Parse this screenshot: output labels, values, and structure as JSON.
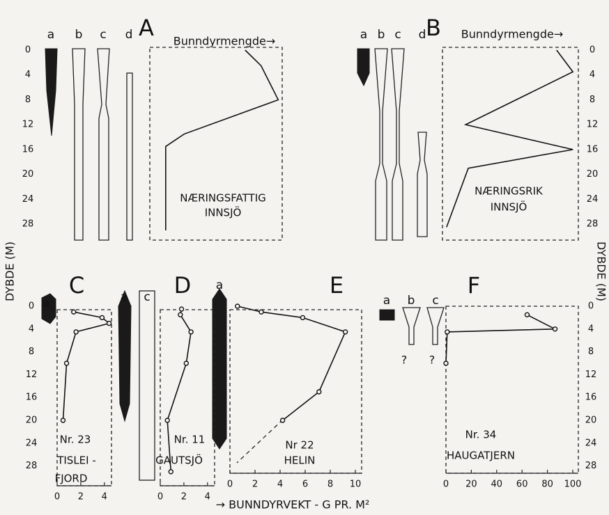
{
  "y_label": "DYBDE (M)",
  "x_label": "→ BUNNDYRVEKT - G PR. M²",
  "chart_data": [
    {
      "type": "line",
      "label": "A",
      "header": "Bunndyrmengde→",
      "columns": [
        "a",
        "b",
        "c",
        "d"
      ],
      "notes": [
        "NÆRINGSFATTIG",
        "INNSJÖ"
      ],
      "x": [
        72,
        84,
        97,
        26,
        12,
        12
      ],
      "values": [
        0,
        2.5,
        8,
        13.5,
        15.5,
        29
      ],
      "xlim": [
        0,
        100
      ],
      "ylim": [
        0,
        28
      ],
      "yticks": [
        0,
        4,
        8,
        12,
        16,
        20,
        24,
        28
      ],
      "markers": false
    },
    {
      "type": "line",
      "label": "B",
      "header": "Bunndyrmengde→",
      "columns": [
        "a",
        "b",
        "c",
        "d"
      ],
      "notes": [
        "NÆRINGSRIK",
        "INNSJÖ"
      ],
      "x": [
        84,
        96,
        17,
        96,
        19,
        3
      ],
      "values": [
        0,
        3.5,
        12,
        16,
        19,
        28.5
      ],
      "xlim": [
        0,
        100
      ],
      "ylim": [
        0,
        28
      ],
      "yticks": [
        0,
        4,
        8,
        12,
        16,
        20,
        24,
        28
      ],
      "markers": false
    },
    {
      "type": "line",
      "label": "C",
      "columns": [
        "a"
      ],
      "notes": [
        "Nr. 23",
        "TISLEI -",
        "FJORD"
      ],
      "x": [
        1.4,
        3.8,
        4.4,
        1.6,
        0.8,
        0.5
      ],
      "values": [
        1,
        2,
        3,
        4.5,
        10,
        20
      ],
      "xlim": [
        0,
        4.6
      ],
      "xticks": [
        0,
        2,
        4
      ],
      "ylim": [
        0,
        28
      ],
      "yticks": [
        0,
        4,
        8,
        12,
        16,
        20,
        24,
        28
      ],
      "markers": true
    },
    {
      "type": "line",
      "label": "D",
      "columns": [
        "a",
        "c"
      ],
      "notes": [
        "Nr. 11",
        "GAUTSJÖ"
      ],
      "x": [
        1.8,
        1.7,
        2.6,
        2.2,
        0.6,
        0.9
      ],
      "values": [
        0.5,
        1.5,
        4.5,
        10,
        20,
        29
      ],
      "xlim": [
        0,
        4.6
      ],
      "xticks": [
        0,
        2,
        4
      ],
      "ylim": [
        0,
        28
      ],
      "markers": true
    },
    {
      "type": "line",
      "label": "E",
      "columns": [
        "a"
      ],
      "notes": [
        "Nr 22",
        "HELIN"
      ],
      "x": [
        0.6,
        2.5,
        5.8,
        9.2,
        7.1,
        4.2
      ],
      "values": [
        0,
        1,
        2,
        4.5,
        15,
        20
      ],
      "xlim": [
        0,
        10.5
      ],
      "xticks": [
        0,
        2,
        4,
        6,
        8,
        10
      ],
      "ylim": [
        0,
        28
      ],
      "markers": true
    },
    {
      "type": "line",
      "label": "F",
      "columns": [
        "a",
        "b",
        "c"
      ],
      "notes": [
        "Nr. 34",
        "HAUGATJERN"
      ],
      "queries": [
        "?",
        "?"
      ],
      "x": [
        64,
        86,
        1,
        0
      ],
      "values": [
        1.5,
        4,
        4.5,
        10
      ],
      "xlim": [
        0,
        100
      ],
      "xticks": [
        0,
        20,
        40,
        60,
        80,
        100
      ],
      "ylim": [
        0,
        28
      ],
      "yticks": [
        0,
        4,
        8,
        12,
        16,
        20,
        24,
        28
      ],
      "markers": true
    }
  ]
}
